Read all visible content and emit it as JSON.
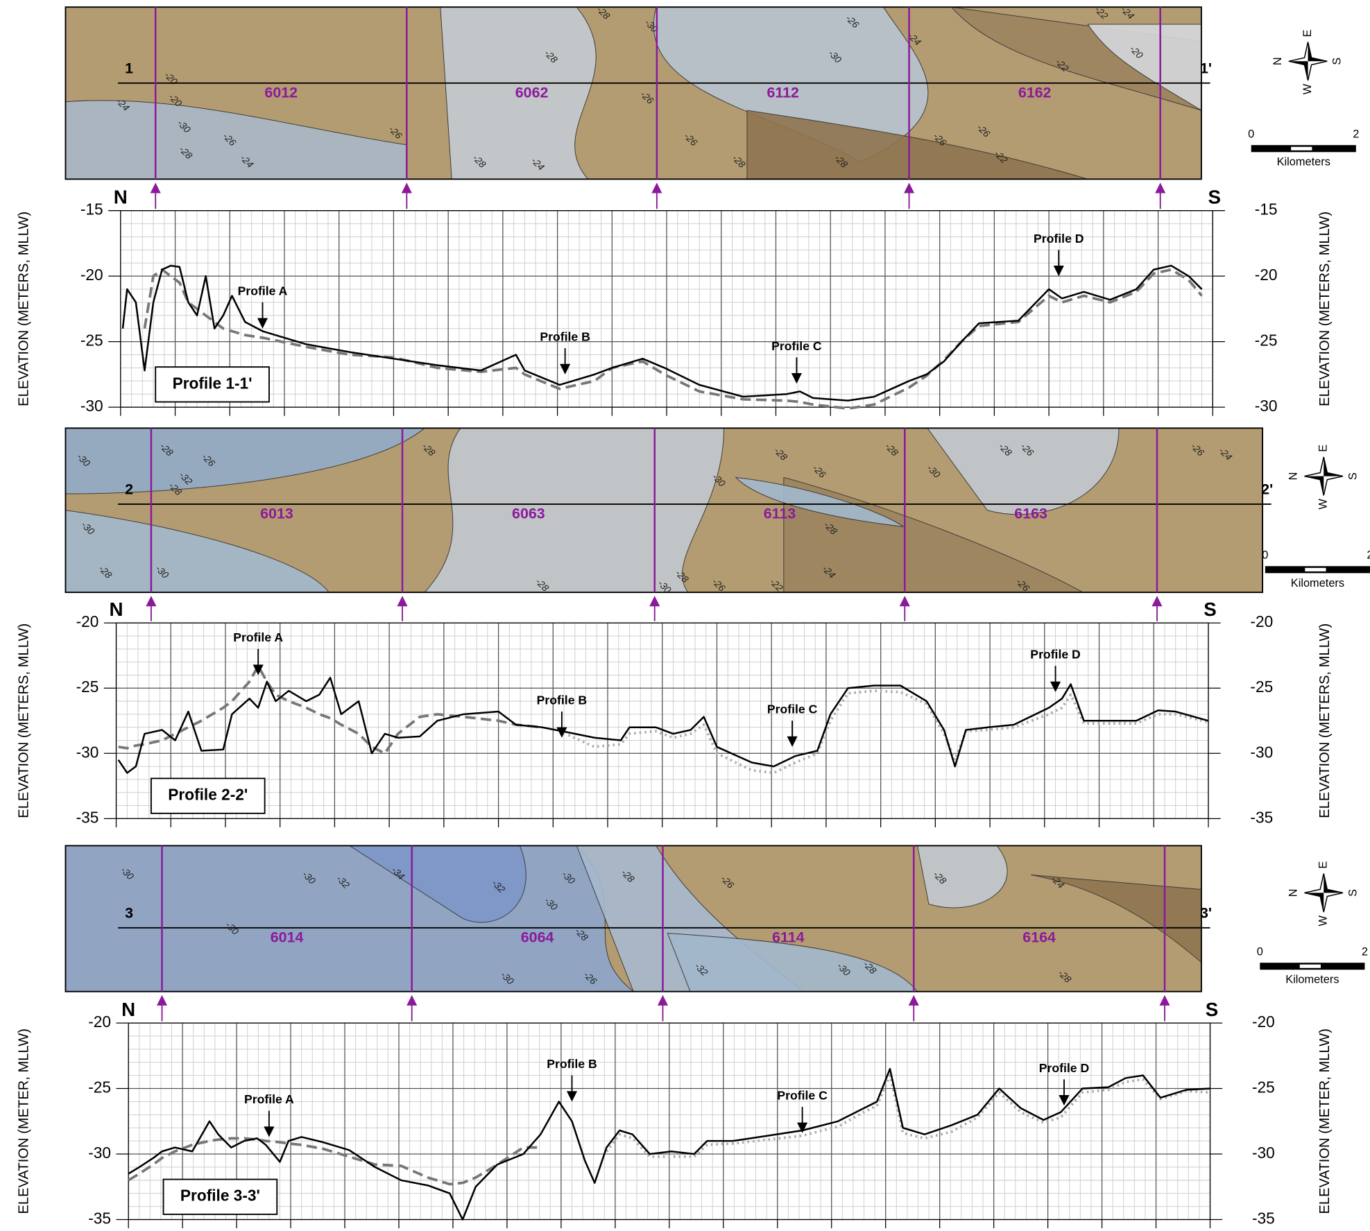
{
  "compass": {
    "n": "N",
    "e": "E",
    "s": "S",
    "w": "W"
  },
  "scale_bar": {
    "start": "0",
    "end": "2",
    "unit": "Kilometers"
  },
  "maps": [
    {
      "line_start": "1",
      "line_end": "1'",
      "track_labels": [
        "6012",
        "6062",
        "6112",
        "6162"
      ],
      "contour_labels": [
        "-28",
        "-30",
        "-26",
        "-22",
        "-24",
        "-28",
        "-30",
        "-20",
        "-22",
        "-24",
        "-20",
        "-20",
        "-24",
        "-30",
        "-28",
        "-26",
        "-24",
        "-26",
        "-26",
        "-28",
        "-24",
        "-26",
        "-28",
        "-28",
        "-26",
        "-26",
        "-22"
      ]
    },
    {
      "line_start": "2",
      "line_end": "2'",
      "track_labels": [
        "6013",
        "6063",
        "6113",
        "6163"
      ],
      "contour_labels": [
        "-30",
        "-28",
        "-26",
        "-32",
        "-28",
        "-30",
        "-28",
        "-30",
        "-28",
        "-30",
        "-28",
        "-26",
        "-28",
        "-30",
        "-28",
        "-26",
        "-26",
        "-24",
        "-28",
        "-24",
        "-22",
        "-28",
        "-26",
        "-30",
        "-26",
        "-28"
      ]
    },
    {
      "line_start": "3",
      "line_end": "3'",
      "track_labels": [
        "6014",
        "6064",
        "6114",
        "6164"
      ],
      "contour_labels": [
        "-30",
        "-30",
        "-30",
        "-32",
        "-34",
        "-32",
        "-30",
        "-28",
        "-26",
        "-28",
        "-24",
        "-30",
        "-28",
        "-26",
        "-30",
        "-32",
        "-30",
        "-28",
        "-28"
      ]
    }
  ],
  "chart_data": [
    {
      "type": "line",
      "title": "Profile 1-1'",
      "start_label": "N",
      "end_label": "S",
      "y_label": "ELEVATION (METERS, MLLW)",
      "xlim": [
        0,
        100
      ],
      "xticks": [
        0,
        5,
        10,
        15,
        20,
        25,
        30,
        35,
        40,
        45,
        50,
        55,
        60,
        65,
        70,
        75,
        80,
        85,
        90,
        95,
        100
      ],
      "ylim": [
        -30,
        -15
      ],
      "yticks": [
        -15,
        -20,
        -25,
        -30
      ],
      "grid": true,
      "markers": [
        3.2,
        26.2,
        49.1,
        72.2,
        95.2
      ],
      "marker_color": "#8b1a9b",
      "x": [
        0.2,
        0.6,
        1.4,
        2.2,
        3.0,
        3.8,
        4.6,
        5.4,
        6.2,
        7.0,
        7.8,
        8.6,
        9.4,
        10.2,
        11.4,
        13.0,
        17.0,
        21.0,
        25.0,
        29.0,
        33.0,
        36.2,
        37.0,
        40.2,
        43.4,
        45.0,
        47.8,
        49.8,
        53.0,
        57.0,
        61.0,
        62.2,
        63.4,
        66.6,
        69.0,
        72.2,
        73.8,
        75.4,
        77.0,
        78.6,
        82.2,
        85.0,
        86.2,
        88.2,
        90.6,
        93.0,
        94.6,
        96.2,
        97.8,
        99.0
      ],
      "series": [
        {
          "color": "#000000",
          "dash": "solid",
          "values": [
            -24,
            -21,
            -22,
            -27.2,
            -22,
            -19.5,
            -19.2,
            -19.3,
            -22,
            -23,
            -20,
            -24,
            -23,
            -21.5,
            -23.5,
            -24.2,
            -25.2,
            -25.8,
            -26.3,
            -26.8,
            -27.2,
            -26,
            -27.2,
            -28.3,
            -27.5,
            -27,
            -26.3,
            -27,
            -28.3,
            -29.2,
            -29,
            -28.8,
            -29.3,
            -29.5,
            -29.2,
            -28,
            -27.5,
            -26.5,
            -25,
            -23.6,
            -23.4,
            -21,
            -21.7,
            -21.2,
            -21.8,
            -21,
            -19.5,
            -19.2,
            -20,
            -21
          ]
        },
        {
          "color": "#777777",
          "dash": "dashed",
          "values": [
            null,
            null,
            null,
            -24,
            -20,
            -19.5,
            -20,
            -20.5,
            -22,
            -22.5,
            -23,
            -23.5,
            -24,
            -24.2,
            -24.5,
            -24.7,
            -25.4,
            -26.0,
            -26.2,
            -27,
            -27.3,
            -27,
            -27.5,
            -28.6,
            -28,
            -27,
            -26.5,
            -27.5,
            -28.8,
            -29.4,
            -29.5,
            -29.6,
            -29.8,
            -30.1,
            -29.8,
            -28.5,
            -27.6,
            -26.4,
            -25,
            -23.8,
            -23.5,
            -21.5,
            -22,
            -21.5,
            -22,
            -21.2,
            -19.8,
            -19.5,
            -20.3,
            -21.5
          ]
        }
      ],
      "annotations": [
        {
          "text": "Profile A",
          "x": 13.0,
          "y": -24
        },
        {
          "text": "Profile B",
          "x": 40.7,
          "y": -27.5
        },
        {
          "text": "Profile C",
          "x": 61.9,
          "y": -28.2
        },
        {
          "text": "Profile D",
          "x": 85.9,
          "y": -20
        }
      ]
    },
    {
      "type": "line",
      "title": "Profile 2-2'",
      "start_label": "N",
      "end_label": "S",
      "y_label": "ELEVATION (METERS, MLLW)",
      "xlim": [
        0,
        100
      ],
      "xticks": [
        0,
        5,
        10,
        15,
        20,
        25,
        30,
        35,
        40,
        45,
        50,
        55,
        60,
        65,
        70,
        75,
        80,
        85,
        90,
        95,
        100
      ],
      "ylim": [
        -35,
        -20
      ],
      "yticks": [
        -20,
        -25,
        -30,
        -35
      ],
      "grid": true,
      "markers": [
        3.2,
        26.2,
        49.3,
        72.2,
        95.3
      ],
      "marker_color": "#8b1a9b",
      "x": [
        0.2,
        1.0,
        1.8,
        2.6,
        4.2,
        5.4,
        6.6,
        7.8,
        9.8,
        10.6,
        12.2,
        13.0,
        13.8,
        14.6,
        15.8,
        17.4,
        18.6,
        19.6,
        20.6,
        22.2,
        23.4,
        24.6,
        25.8,
        27.8,
        29.4,
        31.8,
        35.0,
        36.6,
        39.0,
        41.4,
        43.8,
        46.2,
        47.0,
        49.4,
        51.0,
        52.6,
        53.8,
        55.0,
        58.2,
        60.2,
        62.2,
        64.2,
        65.4,
        67.0,
        69.4,
        71.8,
        74.2,
        75.8,
        76.8,
        77.8,
        79.8,
        82.2,
        85.4,
        86.6,
        87.4,
        88.6,
        90.2,
        93.4,
        95.4,
        97.0,
        100
      ],
      "series": [
        {
          "color": "#000000",
          "dash": "solid",
          "values": [
            -30.5,
            -31.5,
            -31,
            -28.5,
            -28.2,
            -29,
            -26.8,
            -29.8,
            -29.7,
            -27,
            -25.8,
            -26.5,
            -24.5,
            -26,
            -25.2,
            -26,
            -25.5,
            -24.2,
            -27,
            -26,
            -30,
            -28.5,
            -28.8,
            -28.7,
            -27.5,
            -27,
            -26.8,
            -27.8,
            -28,
            -28.4,
            -28.8,
            -29,
            -28,
            -28,
            -28.5,
            -28.2,
            -27.2,
            -29.5,
            -30.7,
            -31,
            -30.2,
            -29.8,
            -27,
            -25,
            -24.8,
            -24.8,
            -26,
            -28.2,
            -31,
            -28.2,
            -28,
            -27.8,
            -26.5,
            -25.8,
            -24.7,
            -27.5,
            -27.5,
            -27.5,
            -26.7,
            -26.8,
            -27.5
          ]
        },
        {
          "color": "#777777",
          "dash": "dashed",
          "values": [
            -29.5,
            -29.6,
            -29.4,
            -29.3,
            -29,
            -28.5,
            -28,
            -27.5,
            -26.5,
            -26,
            -24.5,
            -23.3,
            -24.5,
            -25.5,
            -26,
            -26.5,
            -27,
            -27.3,
            -27.8,
            -28.5,
            -29.5,
            -30,
            -28.5,
            -27.2,
            -27,
            -27.2,
            -27.5,
            -27.8,
            -28,
            null,
            null,
            null,
            null,
            null,
            null,
            null,
            null,
            null,
            null,
            null,
            null,
            null,
            null,
            null,
            null,
            null,
            null,
            null,
            null,
            null,
            null,
            null,
            null,
            null,
            null,
            null,
            null,
            null,
            null,
            null,
            null
          ]
        },
        {
          "color": "#aaaaaa",
          "dash": "dotted",
          "values": [
            null,
            null,
            null,
            null,
            null,
            null,
            null,
            null,
            null,
            null,
            null,
            null,
            null,
            null,
            null,
            null,
            null,
            null,
            null,
            null,
            null,
            null,
            null,
            null,
            null,
            null,
            null,
            null,
            null,
            -28.6,
            -29.5,
            -29.3,
            -28.5,
            -28.3,
            -28.8,
            -28.5,
            -27.8,
            -30,
            -31.3,
            -31.5,
            -30.7,
            -30,
            -27.5,
            -25.4,
            -25.2,
            -25.3,
            -26.2,
            -28.5,
            -30.5,
            -28.3,
            -28.2,
            -28,
            -27,
            -26.5,
            -25.5,
            -27.7,
            -27.7,
            -27.7,
            -27,
            -27,
            -27.6
          ]
        }
      ],
      "annotations": [
        {
          "text": "Profile A",
          "x": 13.0,
          "y": -24
        },
        {
          "text": "Profile B",
          "x": 40.8,
          "y": -28.8
        },
        {
          "text": "Profile C",
          "x": 61.9,
          "y": -29.5
        },
        {
          "text": "Profile D",
          "x": 86.0,
          "y": -25.3
        }
      ]
    },
    {
      "type": "line",
      "title": "Profile 3-3'",
      "start_label": "N",
      "end_label": "S",
      "y_label": "ELEVATION (METER, MLLW)",
      "xlim": [
        0,
        100
      ],
      "xticks": [
        0,
        5,
        10,
        15,
        20,
        25,
        30,
        35,
        40,
        45,
        50,
        55,
        60,
        65,
        70,
        75,
        80,
        85,
        90,
        95,
        100
      ],
      "ylim": [
        -35,
        -20
      ],
      "yticks": [
        -20,
        -25,
        -30,
        -35
      ],
      "grid": true,
      "markers": [
        3.1,
        26.2,
        49.4,
        72.6,
        95.8
      ],
      "marker_color": "#8b1a9b",
      "x": [
        0,
        1.0,
        2.3,
        3.1,
        4.3,
        5.9,
        7.5,
        8.3,
        9.5,
        10.7,
        11.9,
        12.7,
        14.0,
        14.8,
        16.0,
        18.0,
        20.4,
        22.8,
        25.2,
        27.7,
        29.7,
        30.9,
        32.1,
        34.1,
        36.5,
        38.1,
        39.8,
        41.0,
        42.2,
        43.1,
        44.2,
        45.4,
        46.6,
        48.2,
        50.2,
        52.3,
        53.5,
        55.9,
        59.1,
        62.3,
        65.6,
        68.0,
        69.2,
        70.4,
        71.6,
        73.6,
        76.1,
        78.5,
        80.5,
        82.5,
        84.6,
        86.2,
        88.2,
        90.6,
        92.2,
        93.8,
        95.4,
        97.8,
        100
      ],
      "series": [
        {
          "color": "#000000",
          "dash": "solid",
          "values": [
            -31.5,
            -31,
            -30.3,
            -29.8,
            -29.5,
            -29.8,
            -27.5,
            -28.5,
            -29.5,
            -29,
            -28.8,
            -29.3,
            -30.6,
            -29,
            -28.7,
            -29.1,
            -29.7,
            -31,
            -32,
            -32.4,
            -33,
            -35,
            -32.5,
            -30.8,
            -30,
            -28.5,
            -26,
            -27.5,
            -30.5,
            -32.2,
            -29.5,
            -28.2,
            -28.5,
            -30,
            -29.8,
            -30,
            -29,
            -29,
            -28.6,
            -28.2,
            -27.5,
            -26.5,
            -26,
            -23.5,
            -28,
            -28.5,
            -27.8,
            -27,
            -25,
            -26.5,
            -27.4,
            -26.8,
            -25,
            -24.9,
            -24.2,
            -24,
            -25.7,
            -25.1,
            -25
          ]
        },
        {
          "color": "#777777",
          "dash": "dashed",
          "values": [
            -32,
            -31.5,
            -30.8,
            -30.3,
            -29.8,
            -29.3,
            -29,
            -28.9,
            -28.8,
            -28.8,
            -28.9,
            -29,
            -29.1,
            -29.2,
            -29.3,
            -29.6,
            -30.2,
            -30.8,
            -30.9,
            -31.8,
            -32.3,
            -32.2,
            -31.8,
            -30.8,
            -29.5,
            -29.5,
            null,
            null,
            null,
            null,
            null,
            null,
            null,
            null,
            null,
            null,
            null,
            null,
            null,
            null,
            null,
            null,
            null,
            null,
            null,
            null,
            null,
            null,
            null,
            null,
            null,
            null,
            null,
            null,
            null,
            null,
            null,
            null,
            null
          ]
        },
        {
          "color": "#aaaaaa",
          "dash": "dotted",
          "values": [
            null,
            null,
            null,
            null,
            null,
            null,
            null,
            null,
            null,
            null,
            null,
            null,
            null,
            null,
            null,
            null,
            null,
            null,
            null,
            null,
            null,
            null,
            null,
            null,
            null,
            null,
            null,
            null,
            null,
            null,
            -29.8,
            -28.5,
            -28.8,
            -30.2,
            -30.2,
            -30.2,
            -29.3,
            -29.2,
            -28.9,
            -28.6,
            -27.9,
            -26.8,
            -26.3,
            -24,
            -28.4,
            -28.8,
            -28.3,
            -27.2,
            -25.3,
            -26.8,
            -27.6,
            -27.2,
            -25.3,
            -25.1,
            -24.5,
            -24.3,
            -25.8,
            -25.2,
            -25.3
          ]
        }
      ],
      "annotations": [
        {
          "text": "Profile A",
          "x": 13.0,
          "y": -28.7
        },
        {
          "text": "Profile B",
          "x": 41.0,
          "y": -26
        },
        {
          "text": "Profile C",
          "x": 62.3,
          "y": -28.4
        },
        {
          "text": "Profile D",
          "x": 86.5,
          "y": -26.3
        }
      ]
    }
  ]
}
